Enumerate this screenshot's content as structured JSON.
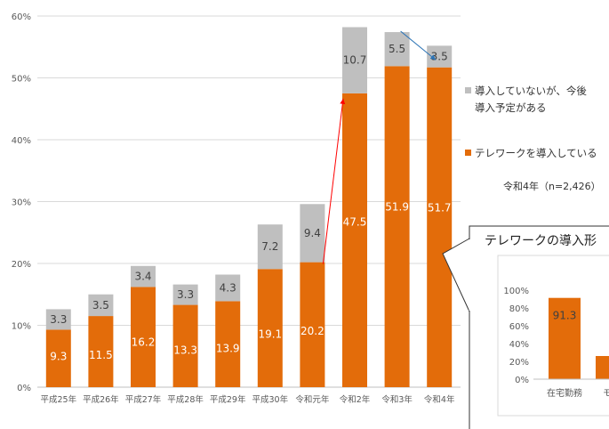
{
  "colors": {
    "telework": "#E36C0A",
    "planned": "#BFBFBF",
    "arrow_red": "#FF0000",
    "arrow_blue": "#2E75B6"
  },
  "chart_data": [
    {
      "type": "bar",
      "stacked": true,
      "categories": [
        "平成25年",
        "平成26年",
        "平成27年",
        "平成28年",
        "平成29年",
        "平成30年",
        "令和元年",
        "令和2年",
        "令和3年",
        "令和4年"
      ],
      "series": [
        {
          "name": "テレワークを導入している",
          "values": [
            9.3,
            11.5,
            16.2,
            13.3,
            13.9,
            19.1,
            20.2,
            47.5,
            51.9,
            51.7
          ]
        },
        {
          "name": "導入していないが、今後導入予定がある",
          "values": [
            3.3,
            3.5,
            3.4,
            3.3,
            4.3,
            7.2,
            9.4,
            10.7,
            5.5,
            3.5
          ]
        }
      ],
      "yticks": [
        "0%",
        "10%",
        "20%",
        "30%",
        "40%",
        "50%",
        "60%"
      ],
      "ylim": [
        0,
        60
      ],
      "grid": true,
      "legend_position": "right",
      "legend_lines": [
        [
          "導入していないが、今後",
          "導入予定がある"
        ],
        [
          "テレワークを導入している"
        ]
      ],
      "note": "令和4年（n=2,426）"
    },
    {
      "type": "bar",
      "title": "テレワークの導入形",
      "categories": [
        "在宅勤務",
        "モバ"
      ],
      "values": [
        91.3,
        26
      ],
      "value_labels": [
        "91.3"
      ],
      "yticks": [
        "100%",
        "80%",
        "60%",
        "40%",
        "20%",
        "0%"
      ],
      "ylim": [
        0,
        100
      ]
    }
  ]
}
